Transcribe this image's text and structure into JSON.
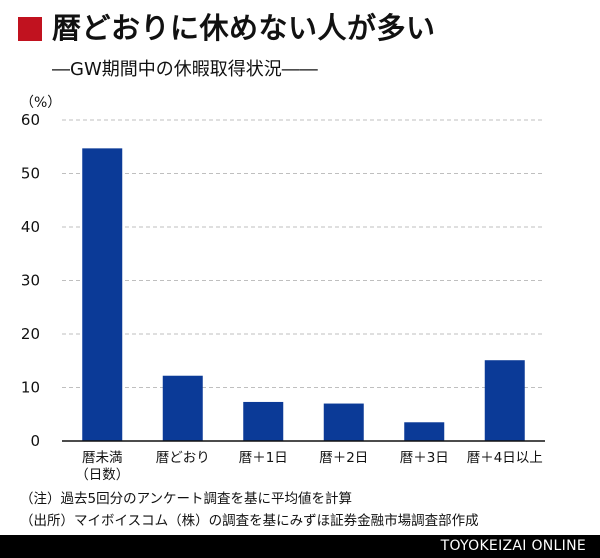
{
  "title": "暦どおりに休めない人が多い",
  "subtitle": "―GW期間中の休暇取得状況――",
  "notes": [
    "（注）過去5回分のアンケート調査を基に平均値を計算",
    "（出所）マイボイスコム（株）の調査を基にみずほ証券金融市場調査部作成"
  ],
  "credit": "TOYOKEIZAI ONLINE",
  "colors": {
    "accent": "#c1121f",
    "bar": "#0b3a97",
    "grid": "#bfbfbf",
    "axis": "#111111",
    "credit_bg": "#000000"
  },
  "chart_data": {
    "type": "bar",
    "title": "",
    "xlabel": "",
    "ylabel": "（%）",
    "ylim": [
      0,
      60
    ],
    "yticks": [
      0,
      10,
      20,
      30,
      40,
      50,
      60
    ],
    "grid": true,
    "categories": [
      [
        "暦未満",
        "（日数）"
      ],
      [
        "暦どおり"
      ],
      [
        "暦＋1日"
      ],
      [
        "暦＋2日"
      ],
      [
        "暦＋3日"
      ],
      [
        "暦＋4日以上"
      ]
    ],
    "values": [
      54.7,
      12.2,
      7.3,
      7.0,
      3.5,
      15.1
    ]
  }
}
